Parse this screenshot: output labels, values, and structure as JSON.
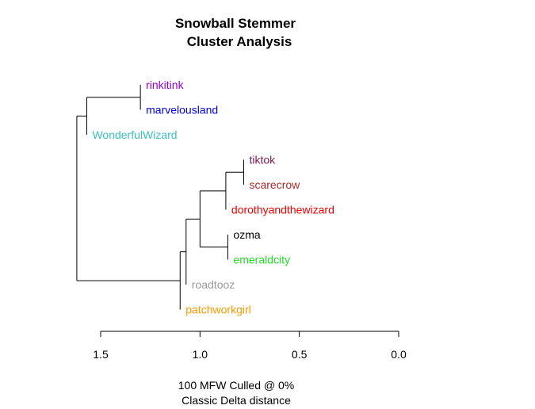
{
  "chart_data": {
    "type": "dendrogram",
    "title": [
      "Snowball Stemmer",
      "Cluster Analysis"
    ],
    "caption": [
      "100 MFW  Culled @ 0%",
      "Classic Delta distance"
    ],
    "axis": {
      "min": 0.0,
      "max": 1.5,
      "reversed": true,
      "ticks": [
        1.5,
        1.0,
        0.5,
        0.0
      ],
      "tick_labels": [
        "1.5",
        "1.0",
        "0.5",
        "0.0"
      ]
    },
    "leaves": [
      {
        "id": "rinkitink",
        "label": "rinkitink",
        "color": "#9400D3"
      },
      {
        "id": "marvelousland",
        "label": "marvelousland",
        "color": "#0000EE"
      },
      {
        "id": "WonderfulWizard",
        "label": "WonderfulWizard",
        "color": "#3BBFBF"
      },
      {
        "id": "tiktok",
        "label": "tiktok",
        "color": "#7A1A4A"
      },
      {
        "id": "scarecrow",
        "label": "scarecrow",
        "color": "#A52A2A"
      },
      {
        "id": "dorothyandthewizard",
        "label": "dorothyandthewizard",
        "color": "#EE0000"
      },
      {
        "id": "ozma",
        "label": "ozma",
        "color": "#000000"
      },
      {
        "id": "emeraldcity",
        "label": "emeraldcity",
        "color": "#22DD22"
      },
      {
        "id": "roadtooz",
        "label": "roadtooz",
        "color": "#999999"
      },
      {
        "id": "patchworkgirl",
        "label": "patchworkgirl",
        "color": "#FF9900"
      }
    ],
    "merges": [
      {
        "id": "m1",
        "height": 1.3,
        "children": [
          "rinkitink",
          "marvelousland"
        ]
      },
      {
        "id": "m2",
        "height": 1.57,
        "children": [
          "m1",
          "WonderfulWizard"
        ]
      },
      {
        "id": "m3",
        "height": 0.78,
        "children": [
          "tiktok",
          "scarecrow"
        ]
      },
      {
        "id": "m4",
        "height": 0.87,
        "children": [
          "m3",
          "dorothyandthewizard"
        ]
      },
      {
        "id": "m5",
        "height": 0.86,
        "children": [
          "ozma",
          "emeraldcity"
        ]
      },
      {
        "id": "m6",
        "height": 1.0,
        "children": [
          "m4",
          "m5"
        ]
      },
      {
        "id": "m7",
        "height": 1.07,
        "children": [
          "m6",
          "roadtooz"
        ]
      },
      {
        "id": "m8",
        "height": 1.1,
        "children": [
          "m7",
          "patchworkgirl"
        ]
      },
      {
        "id": "m9",
        "height": 1.62,
        "children": [
          "m2",
          "m8"
        ]
      }
    ]
  }
}
